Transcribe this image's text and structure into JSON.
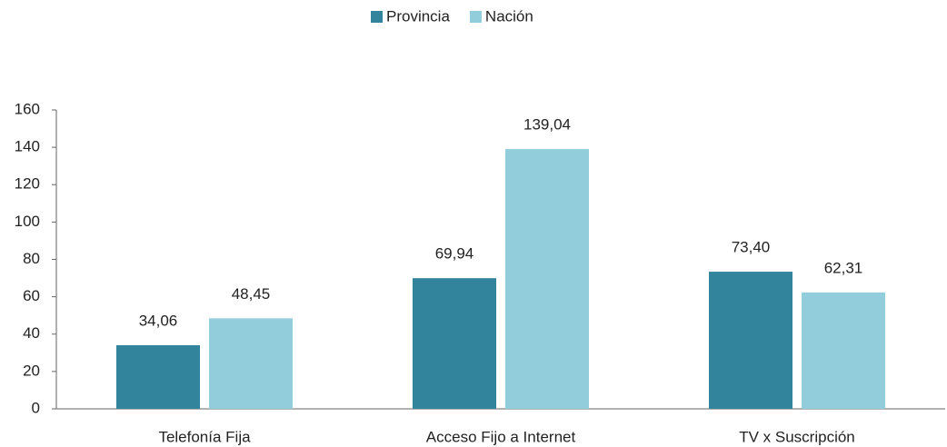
{
  "chart_data": {
    "type": "bar",
    "categories": [
      "Telefonía Fija",
      "Acceso Fijo a Internet",
      "TV x Suscripción"
    ],
    "series": [
      {
        "name": "Provincia",
        "color": "#31849b",
        "values": [
          34.06,
          69.94,
          73.4
        ],
        "value_labels": [
          "34,06",
          "69,94",
          "73,40"
        ]
      },
      {
        "name": "Nación",
        "color": "#92cddc",
        "values": [
          48.45,
          139.04,
          62.31
        ],
        "value_labels": [
          "48,45",
          "139,04",
          "62,31"
        ]
      }
    ],
    "ylim": [
      0,
      160
    ],
    "yticks": [
      0,
      20,
      40,
      60,
      80,
      100,
      120,
      140,
      160
    ],
    "grid": false,
    "legend": "top"
  }
}
